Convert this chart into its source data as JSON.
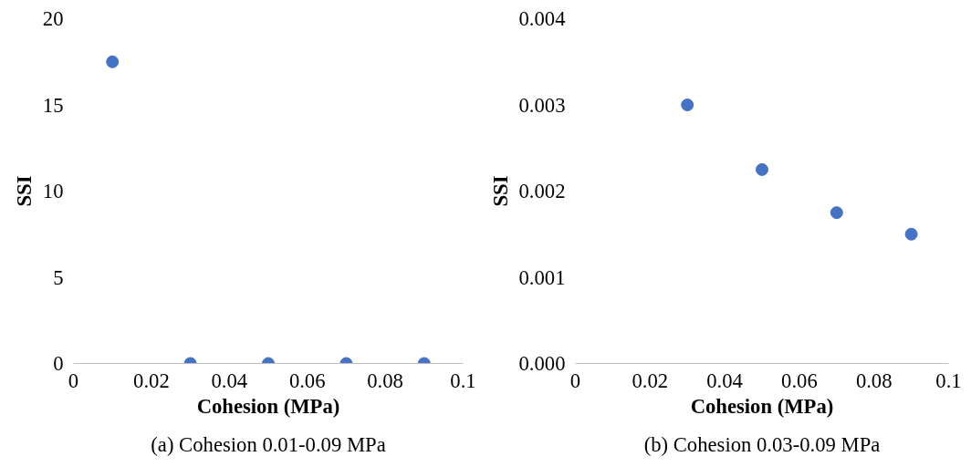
{
  "chart_data": [
    {
      "type": "scatter",
      "xlabel": "Cohesion (MPa)",
      "ylabel": "SSI",
      "annotations": [
        "(a) Cohesion 0.01-0.09 MPa"
      ],
      "x": [
        0.01,
        0.03,
        0.05,
        0.07,
        0.09
      ],
      "series": [
        {
          "color": "#4472c4",
          "values": [
            17.5,
            0,
            0,
            0,
            0
          ]
        }
      ],
      "xlim": [
        0,
        0.1
      ],
      "xticks": [
        0,
        0.02,
        0.04,
        0.06,
        0.08,
        0.1
      ],
      "ylim": [
        0,
        20
      ],
      "yticks": [
        0,
        5,
        10,
        15,
        20
      ],
      "grid": false,
      "marker": "circle"
    },
    {
      "type": "scatter",
      "xlabel": "Cohesion (MPa)",
      "ylabel": "SSI",
      "annotations": [
        "(b) Cohesion 0.03-0.09 MPa"
      ],
      "x": [
        0.03,
        0.05,
        0.07,
        0.09
      ],
      "series": [
        {
          "color": "#4472c4",
          "values": [
            0.003,
            0.00225,
            0.00175,
            0.0015
          ]
        }
      ],
      "xlim": [
        0,
        0.1
      ],
      "xticks": [
        0,
        0.02,
        0.04,
        0.06,
        0.08,
        0.1
      ],
      "ylim": [
        0,
        0.004
      ],
      "yticks": [
        {
          "value": 0,
          "label": "0.000"
        },
        {
          "value": 0.001,
          "label": "0.001"
        },
        {
          "value": 0.002,
          "label": "0.002"
        },
        {
          "value": 0.003,
          "label": "0.003"
        },
        {
          "value": 0.004,
          "label": "0.004"
        }
      ],
      "grid": false,
      "marker": "circle"
    }
  ]
}
